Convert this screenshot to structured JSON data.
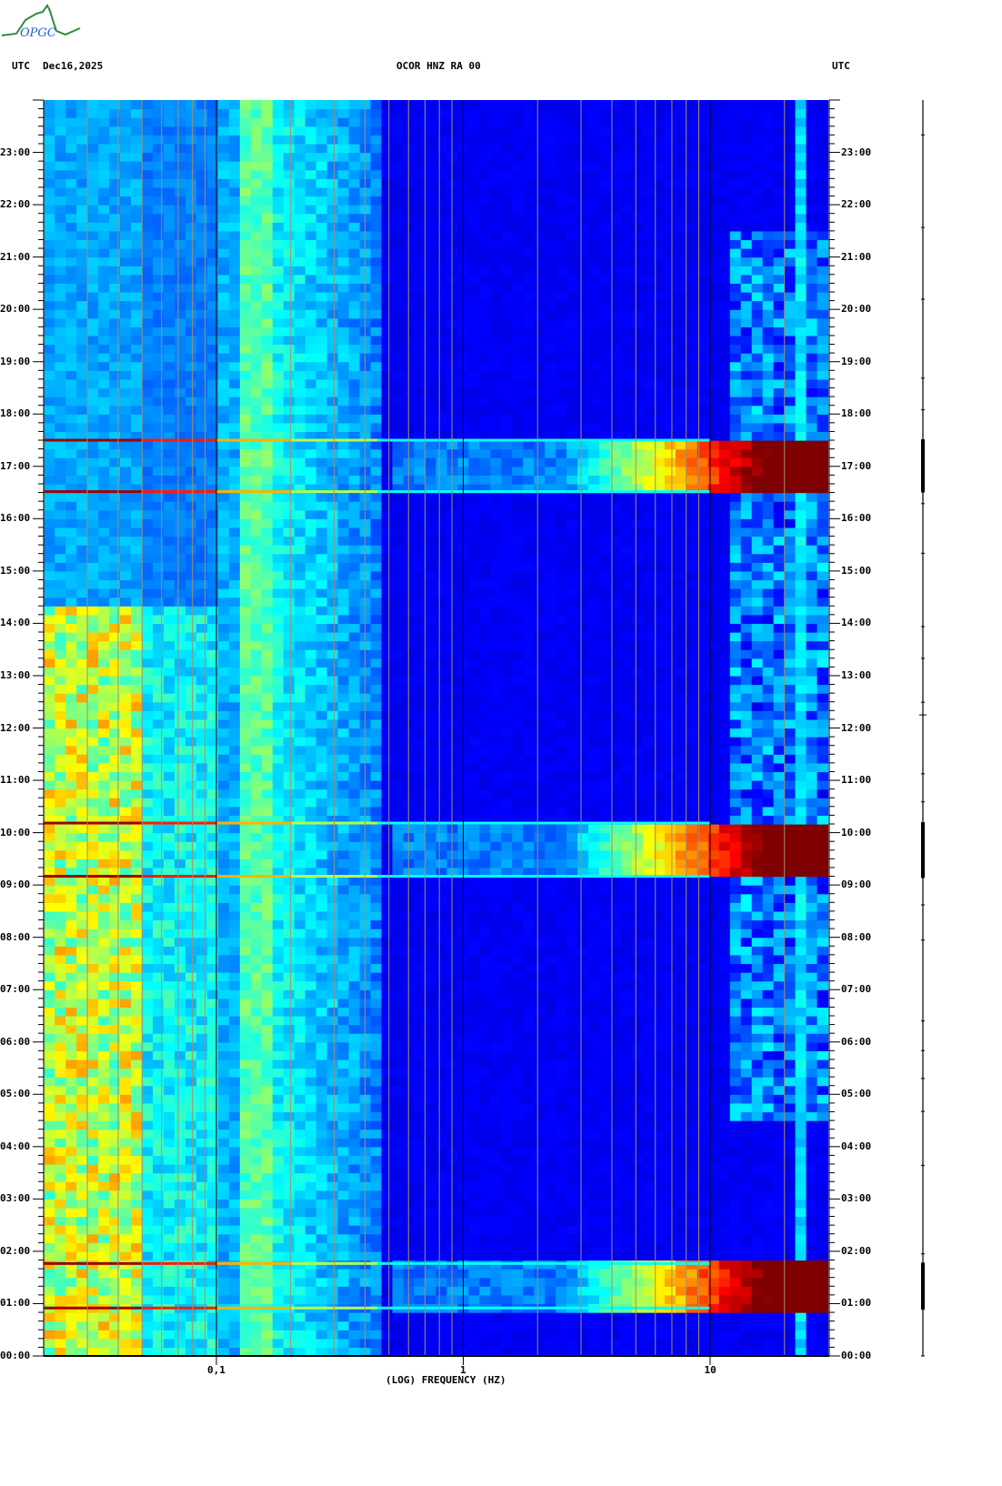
{
  "logo": {
    "text": "OPGC",
    "colors": {
      "curve": "#2e8b3a",
      "text": "#1f5fd0"
    }
  },
  "header": {
    "left_tz": "UTC",
    "date": "Dec16,2025",
    "station": "OCOR HNZ RA 00",
    "right_tz": "UTC"
  },
  "chart_data": {
    "type": "heatmap",
    "title": "OCOR HNZ RA 00",
    "xlabel": "(LOG) FREQUENCY (HZ)",
    "x_scale": "log",
    "xlim": [
      0.02,
      30
    ],
    "x_ticks": [
      {
        "value": 0.1,
        "label": "0,1"
      },
      {
        "value": 1,
        "label": "1"
      },
      {
        "value": 10,
        "label": "10"
      }
    ],
    "x_gridlines": [
      0.02,
      0.03,
      0.04,
      0.05,
      0.06,
      0.07,
      0.08,
      0.09,
      0.1,
      0.2,
      0.3,
      0.4,
      0.5,
      0.6,
      0.7,
      0.8,
      0.9,
      1,
      2,
      3,
      4,
      5,
      6,
      7,
      8,
      9,
      10,
      20
    ],
    "ylabel": "UTC",
    "ylim_hours": [
      0,
      24
    ],
    "y_ticks": [
      "00:00",
      "01:00",
      "02:00",
      "03:00",
      "04:00",
      "05:00",
      "06:00",
      "07:00",
      "08:00",
      "09:00",
      "10:00",
      "11:00",
      "12:00",
      "13:00",
      "14:00",
      "15:00",
      "16:00",
      "17:00",
      "18:00",
      "19:00",
      "20:00",
      "21:00",
      "22:00",
      "23:00"
    ],
    "colormap": "jet",
    "high_energy_events": [
      {
        "start": "00:53",
        "end": "01:47"
      },
      {
        "start": "09:08",
        "end": "10:12"
      },
      {
        "start": "16:30",
        "end": "17:31"
      }
    ],
    "broadband_lines": [
      "00:55",
      "01:46",
      "09:10",
      "10:11",
      "16:31",
      "17:30"
    ],
    "low_frequency_elevated": {
      "band_hz": [
        0.02,
        0.05
      ],
      "start": "00:00",
      "end": "14:20"
    },
    "persistent_band_hz": [
      23,
      25
    ]
  }
}
